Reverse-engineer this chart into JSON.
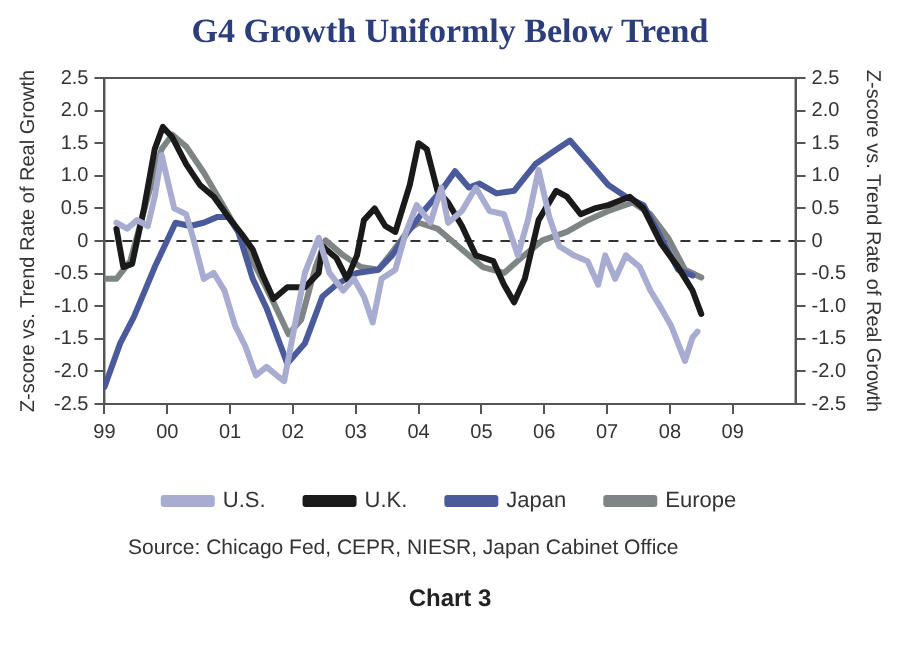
{
  "chart_data": {
    "type": "line",
    "title": "G4 Growth Uniformly Below Trend",
    "ylabel": "Z-score vs. Trend Rate of Real Growth",
    "y2label": "Z-score vs. Trend Rate of Real Growth",
    "xlim": [
      1999,
      2010
    ],
    "xticks": [
      {
        "value": 1999,
        "label": "99"
      },
      {
        "value": 2000,
        "label": "00"
      },
      {
        "value": 2001,
        "label": "01"
      },
      {
        "value": 2002,
        "label": "02"
      },
      {
        "value": 2003,
        "label": "03"
      },
      {
        "value": 2004,
        "label": "04"
      },
      {
        "value": 2005,
        "label": "05"
      },
      {
        "value": 2006,
        "label": "06"
      },
      {
        "value": 2007,
        "label": "07"
      },
      {
        "value": 2008,
        "label": "08"
      },
      {
        "value": 2009,
        "label": "09"
      }
    ],
    "ylim": [
      -2.5,
      2.5
    ],
    "yticks": [
      -2.5,
      {
        "value": -2,
        "label": "-2.0"
      },
      -1.5,
      {
        "value": -1,
        "label": "-1.0"
      },
      -0.5,
      0,
      0.5,
      {
        "value": 1,
        "label": "1.0"
      },
      1.5,
      {
        "value": 2,
        "label": "2.0"
      },
      2.5
    ],
    "y2lim": [
      -2.5,
      2.5
    ],
    "y2ticks": [
      -2.5,
      {
        "value": -2,
        "label": "-2.0"
      },
      -1.5,
      {
        "value": -1,
        "label": "-1.0"
      },
      -0.5,
      0,
      0.5,
      {
        "value": 1,
        "label": "1.0"
      },
      1.5,
      {
        "value": 2,
        "label": "2.0"
      },
      2.5
    ],
    "series": [
      {
        "name": "U.S.",
        "color": "#a8acd0",
        "x": [
          1999.19,
          1999.36,
          1999.52,
          1999.69,
          1999.8,
          1999.91,
          2000,
          2000.11,
          2000.3,
          2000.41,
          2000.58,
          2000.74,
          2000.91,
          2001.08,
          2001.24,
          2001.41,
          2001.58,
          2001.74,
          2001.86,
          2002.02,
          2002.19,
          2002.41,
          2002.58,
          2002.8,
          2002.97,
          2003.13,
          2003.27,
          2003.41,
          2003.63,
          2003.8,
          2003.97,
          2004.19,
          2004.36,
          2004.47,
          2004.69,
          2004.91,
          2005.13,
          2005.36,
          2005.58,
          2005.74,
          2005.91,
          2006.08,
          2006.24,
          2006.47,
          2006.69,
          2006.86,
          2006.97,
          2007.13,
          2007.3,
          2007.52,
          2007.69,
          2007.86,
          2008.02,
          2008.13,
          2008.24,
          2008.36,
          2008.44
        ],
        "values": [
          0.28,
          0.19,
          0.32,
          0.23,
          0.68,
          1.32,
          0.95,
          0.5,
          0.41,
          0.05,
          -0.58,
          -0.49,
          -0.76,
          -1.3,
          -1.61,
          -2.06,
          -1.93,
          -2.06,
          -2.15,
          -1.34,
          -0.49,
          0.05,
          -0.49,
          -0.76,
          -0.58,
          -0.85,
          -1.25,
          -0.58,
          -0.44,
          0.14,
          0.55,
          0.28,
          0.82,
          0.28,
          0.46,
          0.82,
          0.46,
          0.41,
          -0.22,
          0.32,
          1.09,
          0.37,
          -0.08,
          -0.22,
          -0.31,
          -0.67,
          -0.22,
          -0.58,
          -0.22,
          -0.4,
          -0.76,
          -1.03,
          -1.3,
          -1.57,
          -1.84,
          -1.48,
          -1.39
        ]
      },
      {
        "name": "U.K.",
        "color": "#1a1a1a",
        "x": [
          1999.19,
          1999.3,
          1999.44,
          1999.63,
          1999.8,
          1999.93,
          2000.08,
          2000.3,
          2000.52,
          2000.74,
          2000.97,
          2001.19,
          2001.36,
          2001.52,
          2001.69,
          2001.91,
          2002.19,
          2002.41,
          2002.47,
          2002.69,
          2002.86,
          2003.02,
          2003.13,
          2003.3,
          2003.47,
          2003.63,
          2003.86,
          2004,
          2004.13,
          2004.3,
          2004.47,
          2004.69,
          2004.91,
          2005.19,
          2005.36,
          2005.52,
          2005.69,
          2005.91,
          2006.19,
          2006.36,
          2006.58,
          2006.8,
          2007.02,
          2007.36,
          2007.58,
          2007.86,
          2008.13,
          2008.36,
          2008.5
        ],
        "values": [
          0.19,
          -0.4,
          -0.35,
          0.5,
          1.41,
          1.75,
          1.59,
          1.18,
          0.86,
          0.68,
          0.37,
          0.1,
          -0.13,
          -0.53,
          -0.89,
          -0.71,
          -0.71,
          -0.49,
          -0.08,
          -0.26,
          -0.58,
          -0.22,
          0.32,
          0.5,
          0.23,
          0.14,
          0.86,
          1.5,
          1.41,
          0.77,
          0.59,
          0.23,
          -0.22,
          -0.31,
          -0.67,
          -0.94,
          -0.58,
          0.32,
          0.77,
          0.68,
          0.41,
          0.5,
          0.55,
          0.68,
          0.5,
          -0.04,
          -0.4,
          -0.76,
          -1.12
        ]
      },
      {
        "name": "Japan",
        "color": "#4a5a9a",
        "x": [
          1999,
          1999.25,
          1999.47,
          1999.8,
          2000.13,
          2000.36,
          2000.58,
          2000.8,
          2000.97,
          2001.13,
          2001.36,
          2001.58,
          2001.91,
          2002.19,
          2002.47,
          2002.69,
          2003.02,
          2003.36,
          2003.58,
          2003.8,
          2004.08,
          2004.36,
          2004.58,
          2004.8,
          2004.97,
          2005.24,
          2005.52,
          2005.86,
          2006.13,
          2006.41,
          2006.69,
          2007.02,
          2007.3,
          2007.58,
          2007.86,
          2008.13,
          2008.36
        ],
        "values": [
          -2.24,
          -1.57,
          -1.16,
          -0.4,
          0.28,
          0.23,
          0.28,
          0.37,
          0.37,
          0.14,
          -0.58,
          -1.03,
          -1.88,
          -1.57,
          -0.85,
          -0.67,
          -0.49,
          -0.44,
          -0.22,
          0.1,
          0.46,
          0.77,
          1.07,
          0.82,
          0.88,
          0.73,
          0.77,
          1.18,
          1.36,
          1.54,
          1.23,
          0.86,
          0.68,
          0.55,
          0.05,
          -0.44,
          -0.53
        ]
      },
      {
        "name": "Europe",
        "color": "#7f8585",
        "x": [
          1999,
          1999.19,
          1999.41,
          1999.69,
          1999.91,
          2000.08,
          2000.3,
          2000.58,
          2000.86,
          2001.13,
          2001.41,
          2001.69,
          2001.93,
          2002.13,
          2002.36,
          2002.52,
          2002.8,
          2003.08,
          2003.36,
          2003.58,
          2003.86,
          2004,
          2004.3,
          2004.63,
          2005.02,
          2005.36,
          2005.63,
          2005.97,
          2006.36,
          2006.69,
          2007.02,
          2007.41,
          2007.69,
          2007.97,
          2008.24,
          2008.5
        ],
        "values": [
          -0.58,
          -0.58,
          -0.31,
          0.68,
          1.41,
          1.63,
          1.45,
          1.05,
          0.59,
          0.14,
          -0.4,
          -0.94,
          -1.43,
          -1.21,
          -0.4,
          0.01,
          -0.22,
          -0.4,
          -0.44,
          -0.17,
          0.19,
          0.28,
          0.19,
          -0.08,
          -0.4,
          -0.49,
          -0.26,
          0.01,
          0.14,
          0.32,
          0.46,
          0.59,
          0.41,
          0.05,
          -0.44,
          -0.56
        ]
      }
    ],
    "ref_lines": [
      {
        "axis": "y",
        "value": 0,
        "color": "#333333",
        "line_style": "dashed"
      }
    ],
    "grid": false,
    "legend": "bottom",
    "marker": "none",
    "line_style": "solid",
    "annotations": [
      "Source: Chicago Fed, CEPR, NIESR, Japan Cabinet Office",
      "Chart 3"
    ]
  }
}
